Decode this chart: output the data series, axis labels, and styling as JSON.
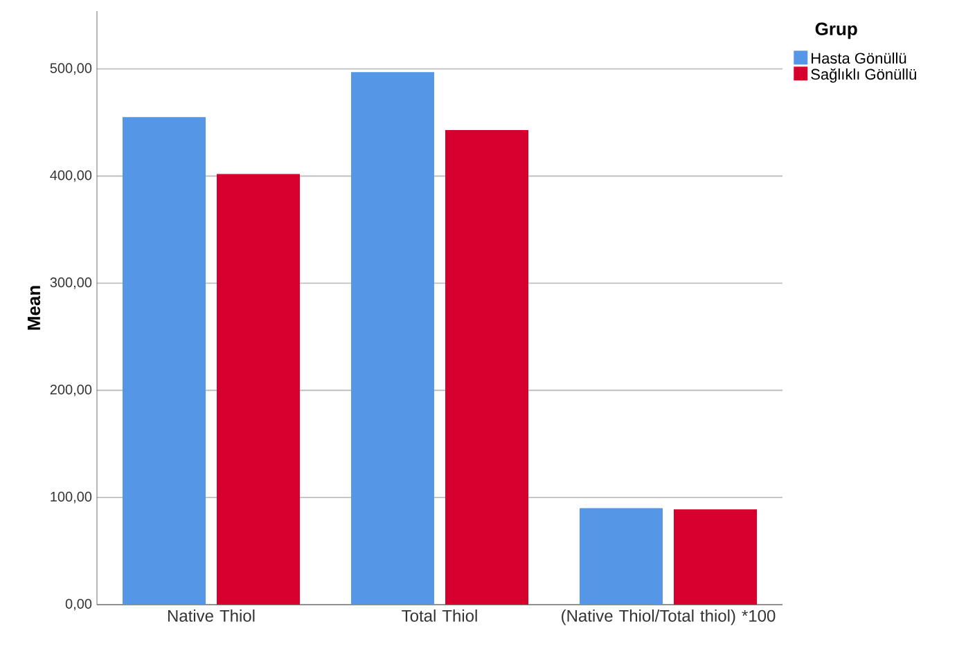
{
  "chart_data": {
    "type": "bar",
    "ylabel": "Mean",
    "legend_title": "Grup",
    "categories": [
      "Native Thiol",
      "Total Thiol",
      "(Native Thiol/Total thiol) *100"
    ],
    "series": [
      {
        "name": "Hasta Gönüllü",
        "color": "#5596e6",
        "values": [
          455,
          497,
          90
        ]
      },
      {
        "name": "Sağlıklı Gönüllü",
        "color": "#d5002e",
        "values": [
          402,
          443,
          89
        ]
      }
    ],
    "ylim": [
      0,
      554
    ],
    "yticks": [
      {
        "value": 0,
        "label": "0,00"
      },
      {
        "value": 100,
        "label": "100,00"
      },
      {
        "value": 200,
        "label": "200,00"
      },
      {
        "value": 300,
        "label": "300,00"
      },
      {
        "value": 400,
        "label": "400,00"
      },
      {
        "value": 500,
        "label": "500,00"
      }
    ],
    "grid": "y",
    "legend": "top right"
  }
}
